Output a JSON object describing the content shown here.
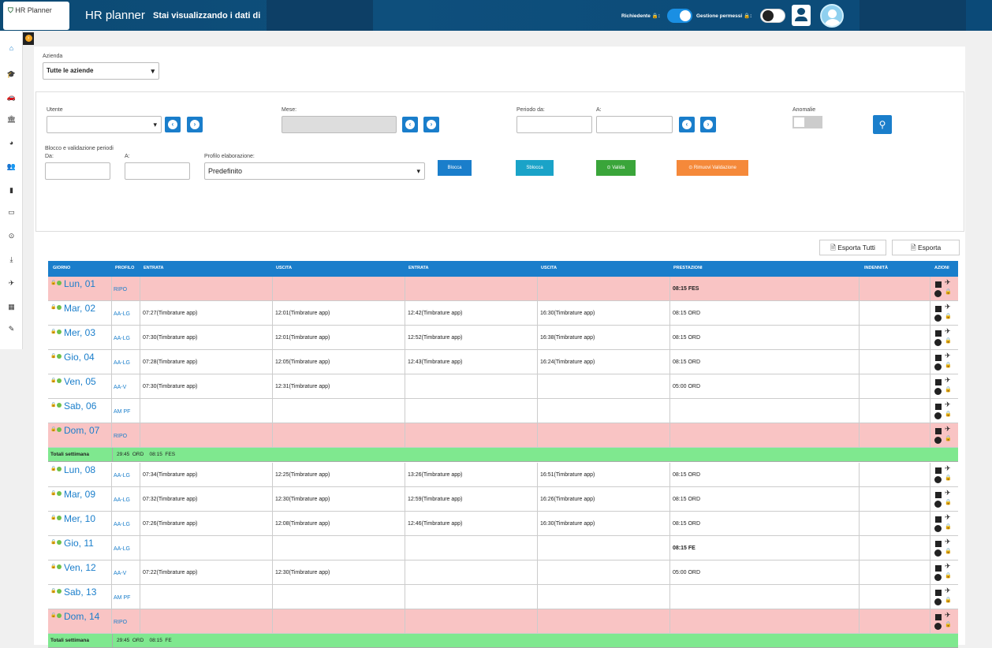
{
  "header": {
    "logo": "HR Planner",
    "title": "HR planner",
    "subtitle": "Stai visualizzando i dati di",
    "requester_label": "Richiedente 🔒:",
    "permissions_label": "Gestione permessi 🔒:"
  },
  "sidebar": {
    "items": [
      "home-icon",
      "graduation-cap-icon",
      "car-icon",
      "bank-icon",
      "pie-chart-icon",
      "users-icon",
      "suitcase-icon",
      "card-icon",
      "clock-icon",
      "download-icon",
      "plane-icon",
      "calendar-icon",
      "wrench-icon"
    ],
    "glyphs": [
      "⌂",
      "🎓",
      "🚗",
      "🏛",
      "◕",
      "👥",
      "▮",
      "▭",
      "⊙",
      "⤓",
      "✈",
      "▦",
      "✎"
    ]
  },
  "filters": {
    "azienda_label": "Azienda",
    "azienda_value": "Tutte le aziende",
    "utente_label": "Utente",
    "utente_value": "",
    "mese_label": "Mese:",
    "periodo_da_label": "Periodo da:",
    "a_label": "A:",
    "anomalie_label": "Anomalie",
    "blocco_label": "Blocco e validazione periodi",
    "da_label": "Da:",
    "a2_label": "A:",
    "profilo_label": "Profilo elaborazione:",
    "profilo_value": "Predefinito",
    "blocca": "Blocca",
    "sblocca": "Sblocca",
    "valida": "⊙ Valida",
    "rimuovi": "⊙ Rimuovi Validazione",
    "colors": {
      "blocca": "#1a7ecb",
      "sblocca": "#1aa3c8",
      "valida": "#3aa53a",
      "rimuovi": "#f5893a"
    }
  },
  "export": {
    "all": "🗎 Esporta Tutti",
    "one": "🗎 Esporta"
  },
  "table": {
    "headers": {
      "giorno": "GIORNO",
      "profilo": "PROFILO",
      "entrata1": "ENTRATA",
      "uscita1": "USCITA",
      "entrata2": "ENTRATA",
      "uscita2": "USCITA",
      "prestazioni": "PRESTAZIONI",
      "indennita": "INDENNITÀ",
      "azioni": "AZIONI"
    },
    "rows": [
      {
        "type": "day",
        "day": "Lun, 01",
        "profile": "RIPO",
        "e1": "",
        "u1": "",
        "e2": "",
        "u2": "",
        "prest": "08:15 FES",
        "pink": true
      },
      {
        "type": "day",
        "day": "Mar, 02",
        "profile": "AA-LG",
        "e1": "07:27(Timbrature app)",
        "u1": "12:01(Timbrature app)",
        "e2": "12:42(Timbrature app)",
        "u2": "16:30(Timbrature app)",
        "prest": "08:15 ORD",
        "pink": false
      },
      {
        "type": "day",
        "day": "Mer, 03",
        "profile": "AA-LG",
        "e1": "07:30(Timbrature app)",
        "u1": "12:01(Timbrature app)",
        "e2": "12:52(Timbrature app)",
        "u2": "16:38(Timbrature app)",
        "prest": "08:15 ORD",
        "pink": false
      },
      {
        "type": "day",
        "day": "Gio, 04",
        "profile": "AA-LG",
        "e1": "07:28(Timbrature app)",
        "u1": "12:05(Timbrature app)",
        "e2": "12:43(Timbrature app)",
        "u2": "16:24(Timbrature app)",
        "prest": "08:15 ORD",
        "pink": false
      },
      {
        "type": "day",
        "day": "Ven, 05",
        "profile": "AA-V",
        "e1": "07:30(Timbrature app)",
        "u1": "12:31(Timbrature app)",
        "e2": "",
        "u2": "",
        "prest": "05:00 ORD",
        "pink": false
      },
      {
        "type": "day",
        "day": "Sab, 06",
        "profile": "AM PF",
        "e1": "",
        "u1": "",
        "e2": "",
        "u2": "",
        "prest": "",
        "pink": false
      },
      {
        "type": "day",
        "day": "Dom, 07",
        "profile": "RIPO",
        "e1": "",
        "u1": "",
        "e2": "",
        "u2": "",
        "prest": "",
        "pink": true
      },
      {
        "type": "total",
        "label": "Totali settimana",
        "value": "29:45  ORD    08:15  FES"
      },
      {
        "type": "day",
        "day": "Lun, 08",
        "profile": "AA-LG",
        "e1": "07:34(Timbrature app)",
        "u1": "12:25(Timbrature app)",
        "e2": "13:26(Timbrature app)",
        "u2": "16:51(Timbrature app)",
        "prest": "08:15 ORD",
        "pink": false
      },
      {
        "type": "day",
        "day": "Mar, 09",
        "profile": "AA-LG",
        "e1": "07:32(Timbrature app)",
        "u1": "12:30(Timbrature app)",
        "e2": "12:59(Timbrature app)",
        "u2": "16:26(Timbrature app)",
        "prest": "08:15 ORD",
        "pink": false
      },
      {
        "type": "day",
        "day": "Mer, 10",
        "profile": "AA-LG",
        "e1": "07:26(Timbrature app)",
        "u1": "12:08(Timbrature app)",
        "e2": "12:46(Timbrature app)",
        "u2": "16:30(Timbrature app)",
        "prest": "08:15 ORD",
        "pink": false
      },
      {
        "type": "day",
        "day": "Gio, 11",
        "profile": "AA-LG",
        "e1": "",
        "u1": "",
        "e2": "",
        "u2": "",
        "prest": "08:15 FE",
        "pink": false
      },
      {
        "type": "day",
        "day": "Ven, 12",
        "profile": "AA-V",
        "e1": "07:22(Timbrature app)",
        "u1": "12:30(Timbrature app)",
        "e2": "",
        "u2": "",
        "prest": "05:00 ORD",
        "pink": false
      },
      {
        "type": "day",
        "day": "Sab, 13",
        "profile": "AM PF",
        "e1": "",
        "u1": "",
        "e2": "",
        "u2": "",
        "prest": "",
        "pink": false
      },
      {
        "type": "day",
        "day": "Dom, 14",
        "profile": "RIPO",
        "e1": "",
        "u1": "",
        "e2": "",
        "u2": "",
        "prest": "",
        "pink": true
      },
      {
        "type": "total",
        "label": "Totali settimana",
        "value": "29:45  ORD    08:15  FE"
      }
    ]
  }
}
